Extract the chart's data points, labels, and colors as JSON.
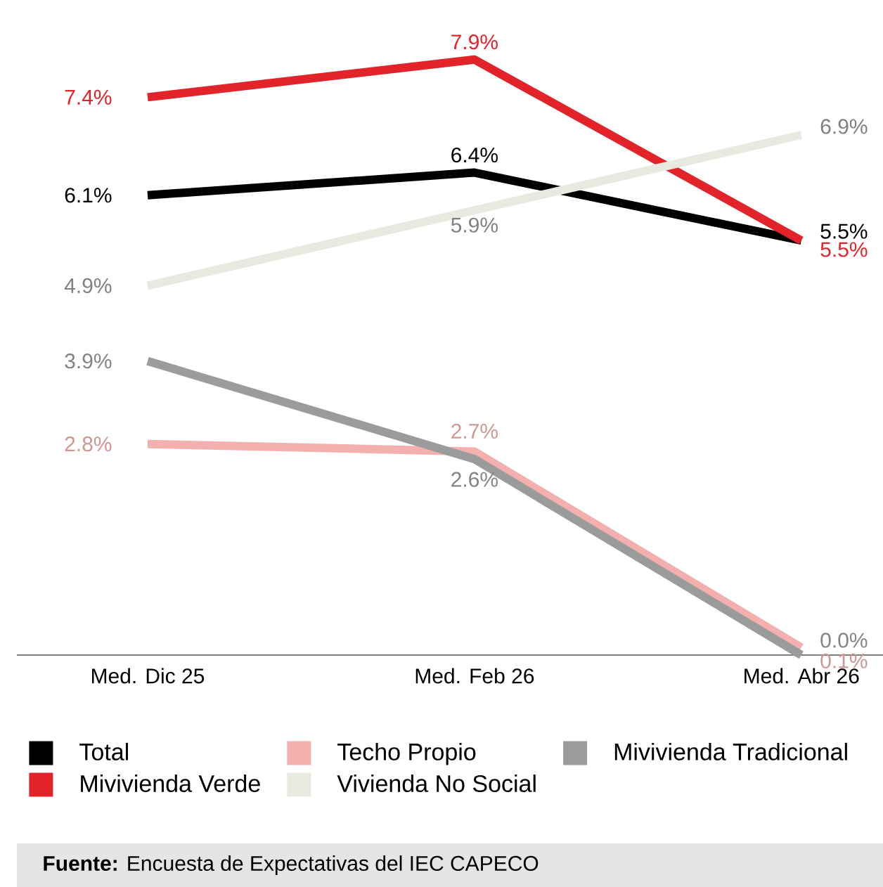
{
  "chart_data": {
    "type": "line",
    "categories": [
      "Med. Dic 25",
      "Med. Feb 26",
      "Med. Abr 26"
    ],
    "series": [
      {
        "name": "Total",
        "color": "#000000",
        "values": [
          6.1,
          6.4,
          5.5
        ],
        "value_labels": [
          "6.1%",
          "6.4%",
          "5.5%"
        ]
      },
      {
        "name": "Techo Propio",
        "color": "#f4b0ae",
        "values": [
          2.8,
          2.7,
          0.1
        ],
        "value_labels": [
          "2.8%",
          "2.7%",
          "0.1%"
        ]
      },
      {
        "name": "Mivivienda Tradicional",
        "color": "#9a9c9b",
        "values": [
          3.9,
          2.6,
          0.0
        ],
        "value_labels": [
          "3.9%",
          "2.6%",
          "0.0%"
        ]
      },
      {
        "name": "Mivivienda Verde",
        "color": "#e3232a",
        "values": [
          7.4,
          7.9,
          5.5
        ],
        "value_labels": [
          "7.4%",
          "7.9%",
          "5.5%"
        ]
      },
      {
        "name": "Vivienda No Social",
        "color": "#e9e9e2",
        "values": [
          4.9,
          5.9,
          6.9
        ],
        "value_labels": [
          "4.9%",
          "5.9%",
          "6.9%"
        ]
      }
    ],
    "tick_labels": "x",
    "grid": false,
    "legend": "bottom",
    "marker": "none",
    "line_style": "solid",
    "annotations": [
      "**Fuente:** Encuesta de Expectativas del IEC CAPECO"
    ]
  }
}
